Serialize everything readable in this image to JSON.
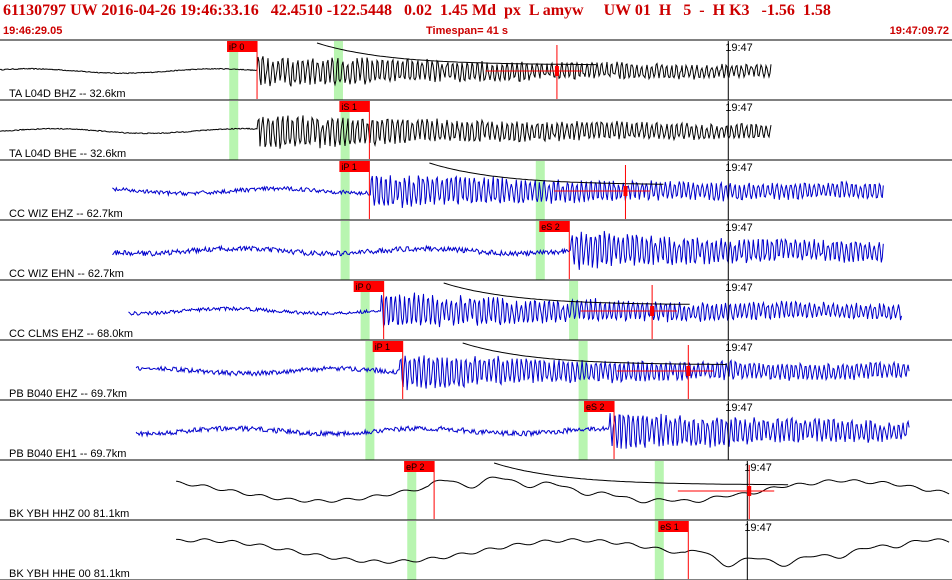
{
  "header": {
    "event_line": "61130797 UW 2016-04-26 19:46:33.16   42.4510 -122.5448   0.02  1.45 Md  px  L amyw     UW 01  H   5  -  H K3   -1.56  1.58",
    "start_time": "19:46:29.05",
    "timespan": "Timespan=  41 s",
    "end_time": "19:47:09.72"
  },
  "colors": {
    "header_red": "#cc0000",
    "pick_red": "#ff0000",
    "window_green": "#b8f5b0",
    "trace_blue": "#0000cc",
    "trace_black": "#000000"
  },
  "chart_data": {
    "type": "line",
    "time_axis": {
      "start": "19:46:29.05",
      "end": "19:47:09.72",
      "span_s": 41,
      "tick_label": "19:47"
    },
    "traces": [
      {
        "name": "TA L04D BHZ -- 32.6km",
        "color": "black",
        "data_start": 0.0,
        "data_end": 0.81,
        "onset": 0.27,
        "amp": 0.7,
        "freq": 1.4,
        "hf": 0,
        "coda": true,
        "lp": false,
        "green": [
          0.245,
          0.355
        ],
        "pick": {
          "label": "iP 0",
          "x": 0.27
        },
        "marker": {
          "x": 0.585,
          "hw": 0.075
        },
        "timeline": 0.765
      },
      {
        "name": "TA L04D BHE -- 32.6km",
        "color": "black",
        "data_start": 0.0,
        "data_end": 0.81,
        "onset": 0.27,
        "amp": 0.75,
        "freq": 1.4,
        "hf": 0,
        "coda": false,
        "lp": false,
        "green": [
          0.245,
          0.362
        ],
        "pick": {
          "label": "iS 1",
          "x": 0.388
        },
        "marker": null,
        "timeline": 0.765
      },
      {
        "name": "CC WIZ EHZ -- 62.7km",
        "color": "blue",
        "data_start": 0.118,
        "data_end": 0.928,
        "onset": 0.39,
        "amp": 0.75,
        "freq": 1.5,
        "hf": 0.3,
        "coda": true,
        "lp": false,
        "green": [
          0.362,
          0.567
        ],
        "pick": {
          "label": "iP 1",
          "x": 0.388
        },
        "marker": {
          "x": 0.657,
          "hw": 0.075
        },
        "timeline": 0.765
      },
      {
        "name": "CC WIZ EHN -- 62.7km",
        "color": "blue",
        "data_start": 0.118,
        "data_end": 0.928,
        "onset": 0.6,
        "amp": 0.8,
        "freq": 1.5,
        "hf": 0.35,
        "coda": false,
        "lp": false,
        "green": [
          0.362,
          0.567
        ],
        "pick": {
          "label": "eS 2",
          "x": 0.598
        },
        "marker": null,
        "timeline": 0.765
      },
      {
        "name": "CC CLMS EHZ -- 68.0km",
        "color": "blue",
        "data_start": 0.135,
        "data_end": 0.948,
        "onset": 0.4,
        "amp": 0.75,
        "freq": 1.5,
        "hf": 0.25,
        "coda": true,
        "lp": false,
        "green": [
          0.383,
          0.602
        ],
        "pick": {
          "label": "iP 0",
          "x": 0.403
        },
        "marker": {
          "x": 0.685,
          "hw": 0.075
        },
        "timeline": 0.765
      },
      {
        "name": "PB B040 EHZ -- 69.7km",
        "color": "blue",
        "data_start": 0.143,
        "data_end": 0.955,
        "onset": 0.42,
        "amp": 0.75,
        "freq": 1.5,
        "hf": 0.35,
        "coda": true,
        "lp": false,
        "green": [
          0.388,
          0.612
        ],
        "pick": {
          "label": "iP 1",
          "x": 0.423
        },
        "marker": {
          "x": 0.723,
          "hw": 0.075
        },
        "timeline": 0.765
      },
      {
        "name": "PB B040 EH1 -- 69.7km",
        "color": "blue",
        "data_start": 0.143,
        "data_end": 0.955,
        "onset": 0.64,
        "amp": 0.8,
        "freq": 1.5,
        "hf": 0.35,
        "coda": false,
        "lp": false,
        "green": [
          0.388,
          0.612
        ],
        "pick": {
          "label": "eS 2",
          "x": 0.645
        },
        "marker": null,
        "timeline": 0.765
      },
      {
        "name": "BK YBH HHZ 00 81.1km",
        "color": "black",
        "data_start": 0.185,
        "data_end": 0.998,
        "onset": 0.45,
        "amp": 0.7,
        "freq": 0.3,
        "hf": 0.05,
        "coda": true,
        "lp": true,
        "green": [
          0.432,
          0.692
        ],
        "pick": {
          "label": "eP 2",
          "x": 0.456
        },
        "marker": {
          "x": 0.787,
          "hw": 0.075
        },
        "timeline": 0.785
      },
      {
        "name": "BK YBH HHE 00 81.1km",
        "color": "black",
        "data_start": 0.185,
        "data_end": 0.998,
        "onset": 0.72,
        "amp": 0.75,
        "freq": 0.3,
        "hf": 0.05,
        "coda": false,
        "lp": true,
        "green": [
          0.432,
          0.692
        ],
        "pick": {
          "label": "eS 1",
          "x": 0.723
        },
        "marker": null,
        "timeline": 0.785
      }
    ]
  }
}
